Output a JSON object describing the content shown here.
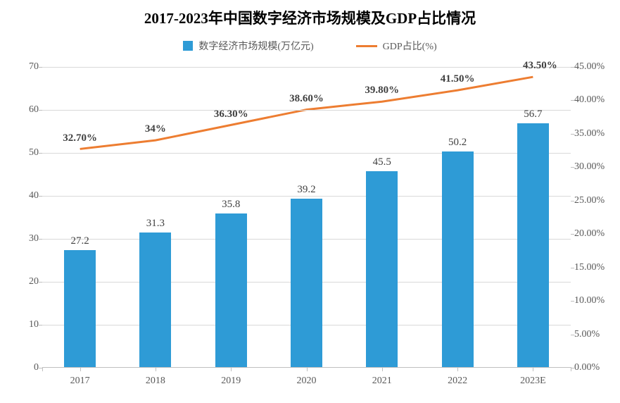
{
  "chart": {
    "title": "2017-2023年中国数字经济市场规模及GDP占比情况",
    "title_fontsize": 21,
    "title_color": "#000000",
    "background_color": "#ffffff",
    "grid_color": "#d9d9d9",
    "axis_color": "#bfbfbf",
    "label_color": "#595959",
    "label_fontsize": 14,
    "data_label_fontsize": 15,
    "legend": {
      "bar_label": "数字经济市场规模(万亿元)",
      "line_label": "GDP占比(%)",
      "bar_color": "#2e9bd6",
      "line_color": "#ed7d31"
    },
    "categories": [
      "2017",
      "2018",
      "2019",
      "2020",
      "2021",
      "2022",
      "2023E"
    ],
    "bars": {
      "values": [
        27.2,
        31.3,
        35.8,
        39.2,
        45.5,
        50.2,
        56.7
      ],
      "labels": [
        "27.2",
        "31.3",
        "35.8",
        "39.2",
        "45.5",
        "50.2",
        "56.7"
      ],
      "color": "#2e9bd6",
      "bar_width_frac": 0.42
    },
    "line": {
      "values": [
        32.7,
        34.0,
        36.3,
        38.6,
        39.8,
        41.5,
        43.5
      ],
      "labels": [
        "32.70%",
        "34%",
        "36.30%",
        "38.60%",
        "39.80%",
        "41.50%",
        "43.50%"
      ],
      "color": "#ed7d31",
      "line_width": 3
    },
    "y_left": {
      "min": 0,
      "max": 70,
      "step": 10,
      "ticks": [
        "0",
        "10",
        "20",
        "30",
        "40",
        "50",
        "60",
        "70"
      ]
    },
    "y_right": {
      "min": 0,
      "max": 45,
      "step": 5,
      "ticks": [
        "0.00%",
        "5.00%",
        "10.00%",
        "15.00%",
        "20.00%",
        "25.00%",
        "30.00%",
        "35.00%",
        "40.00%",
        "45.00%"
      ]
    }
  }
}
